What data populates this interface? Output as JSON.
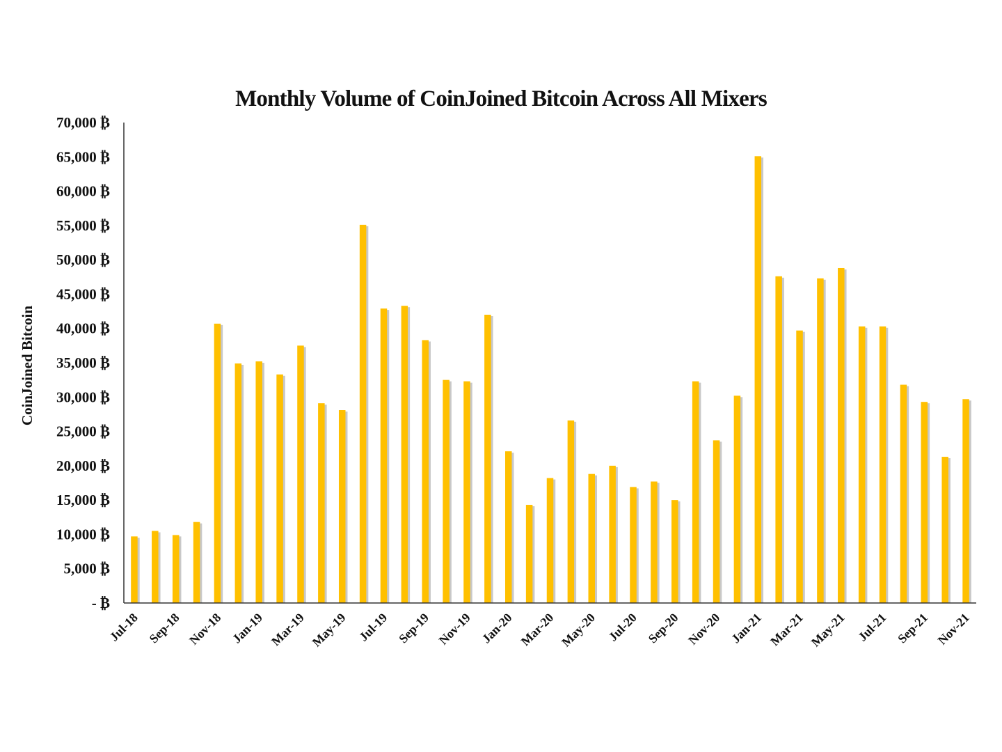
{
  "chart_data": {
    "type": "bar",
    "title": "Monthly Volume of CoinJoined Bitcoin Across All Mixers",
    "xlabel": "",
    "ylabel": "CoinJoined Bitcoin",
    "ylim": [
      0,
      70000
    ],
    "ytick_step": 5000,
    "ytick_labels": [
      "- ₿",
      "5,000 ₿",
      "10,000 ₿",
      "15,000 ₿",
      "20,000 ₿",
      "25,000 ₿",
      "30,000 ₿",
      "35,000 ₿",
      "40,000 ₿",
      "45,000 ₿",
      "50,000 ₿",
      "55,000 ₿",
      "60,000 ₿",
      "65,000 ₿",
      "70,000 ₿"
    ],
    "grid": false,
    "bar_color": "#FFC000",
    "shadow_color": "#b0b0b0",
    "categories": [
      "Jul-18",
      "Aug-18",
      "Sep-18",
      "Oct-18",
      "Nov-18",
      "Dec-18",
      "Jan-19",
      "Feb-19",
      "Mar-19",
      "Apr-19",
      "May-19",
      "Jun-19",
      "Jul-19",
      "Aug-19",
      "Sep-19",
      "Oct-19",
      "Nov-19",
      "Dec-19",
      "Jan-20",
      "Feb-20",
      "Mar-20",
      "Apr-20",
      "May-20",
      "Jun-20",
      "Jul-20",
      "Aug-20",
      "Sep-20",
      "Oct-20",
      "Nov-20",
      "Dec-20",
      "Jan-21",
      "Feb-21",
      "Mar-21",
      "Apr-21",
      "May-21",
      "Jun-21",
      "Jul-21",
      "Aug-21",
      "Sep-21",
      "Oct-21",
      "Nov-21"
    ],
    "xtick_labels_shown": [
      "Jul-18",
      "Sep-18",
      "Nov-18",
      "Jan-19",
      "Mar-19",
      "May-19",
      "Jul-19",
      "Sep-19",
      "Nov-19",
      "Jan-20",
      "Mar-20",
      "May-20",
      "Jul-20",
      "Sep-20",
      "Nov-20",
      "Jan-21",
      "Mar-21",
      "May-21",
      "Jul-21",
      "Sep-21",
      "Nov-21"
    ],
    "values": [
      9700,
      10500,
      9900,
      11800,
      40700,
      34900,
      35200,
      33300,
      37500,
      29100,
      28100,
      55100,
      42900,
      43300,
      38300,
      32500,
      32300,
      42000,
      22100,
      14300,
      18200,
      26600,
      18800,
      20000,
      16900,
      17700,
      15000,
      32300,
      23700,
      30200,
      65100,
      47600,
      39700,
      47300,
      48800,
      40300,
      40300,
      31800,
      29300,
      21300,
      29700
    ]
  }
}
